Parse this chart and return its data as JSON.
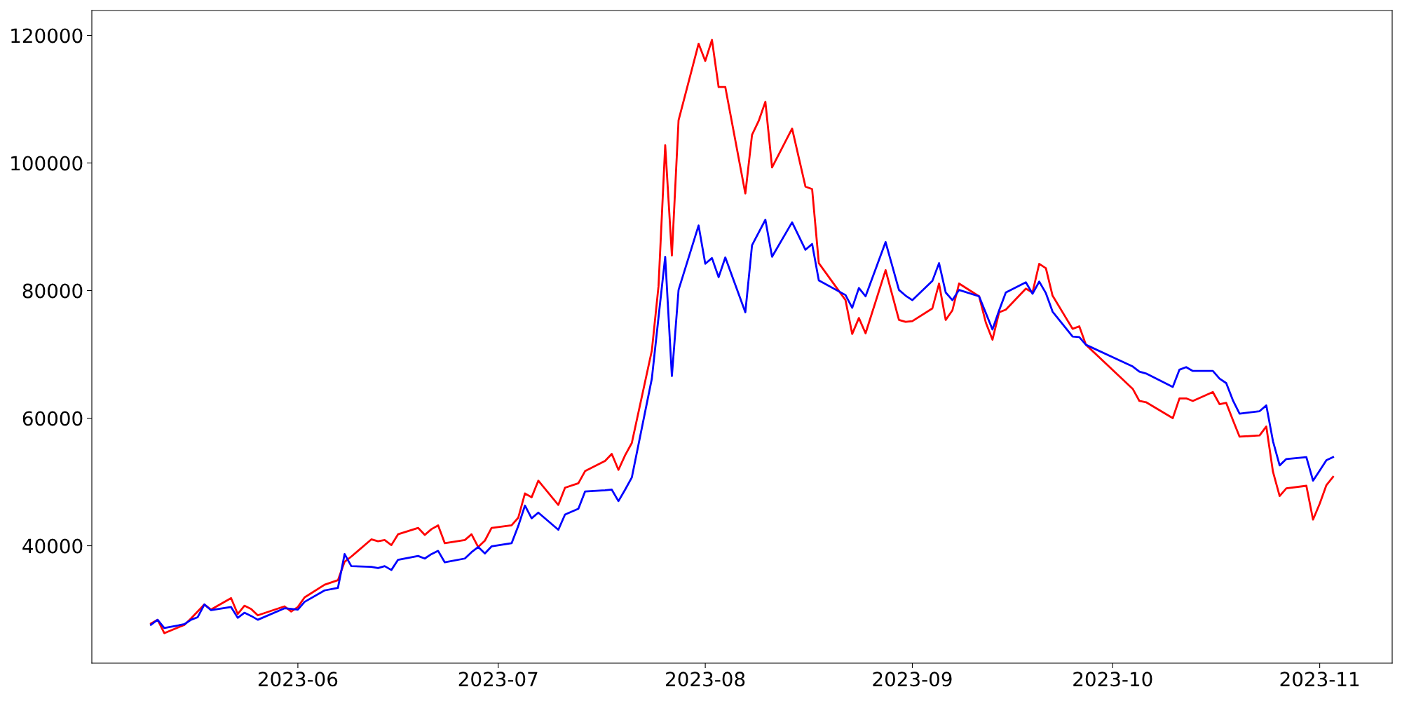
{
  "chart_data": {
    "type": "line",
    "x": [
      "2023-05-10",
      "2023-05-11",
      "2023-05-12",
      "2023-05-15",
      "2023-05-16",
      "2023-05-17",
      "2023-05-18",
      "2023-05-19",
      "2023-05-22",
      "2023-05-23",
      "2023-05-24",
      "2023-05-25",
      "2023-05-26",
      "2023-05-30",
      "2023-05-31",
      "2023-06-01",
      "2023-06-02",
      "2023-06-05",
      "2023-06-07",
      "2023-06-08",
      "2023-06-09",
      "2023-06-12",
      "2023-06-13",
      "2023-06-14",
      "2023-06-15",
      "2023-06-16",
      "2023-06-19",
      "2023-06-20",
      "2023-06-21",
      "2023-06-22",
      "2023-06-23",
      "2023-06-26",
      "2023-06-27",
      "2023-06-28",
      "2023-06-29",
      "2023-06-30",
      "2023-07-03",
      "2023-07-04",
      "2023-07-05",
      "2023-07-06",
      "2023-07-07",
      "2023-07-10",
      "2023-07-11",
      "2023-07-13",
      "2023-07-14",
      "2023-07-17",
      "2023-07-18",
      "2023-07-19",
      "2023-07-20",
      "2023-07-21",
      "2023-07-24",
      "2023-07-25",
      "2023-07-26",
      "2023-07-27",
      "2023-07-28",
      "2023-07-31",
      "2023-08-01",
      "2023-08-02",
      "2023-08-03",
      "2023-08-04",
      "2023-08-07",
      "2023-08-08",
      "2023-08-09",
      "2023-08-10",
      "2023-08-11",
      "2023-08-14",
      "2023-08-16",
      "2023-08-17",
      "2023-08-18",
      "2023-08-22",
      "2023-08-23",
      "2023-08-24",
      "2023-08-25",
      "2023-08-28",
      "2023-08-30",
      "2023-08-31",
      "2023-09-01",
      "2023-09-04",
      "2023-09-05",
      "2023-09-06",
      "2023-09-07",
      "2023-09-08",
      "2023-09-11",
      "2023-09-12",
      "2023-09-13",
      "2023-09-14",
      "2023-09-15",
      "2023-09-18",
      "2023-09-19",
      "2023-09-20",
      "2023-09-21",
      "2023-09-22",
      "2023-09-25",
      "2023-09-26",
      "2023-09-27",
      "2023-10-04",
      "2023-10-05",
      "2023-10-06",
      "2023-10-10",
      "2023-10-11",
      "2023-10-12",
      "2023-10-13",
      "2023-10-16",
      "2023-10-17",
      "2023-10-18",
      "2023-10-19",
      "2023-10-20",
      "2023-10-23",
      "2023-10-24",
      "2023-10-25",
      "2023-10-26",
      "2023-10-27",
      "2023-10-30",
      "2023-10-31",
      "2023-11-01",
      "2023-11-02",
      "2023-11-03"
    ],
    "series": [
      {
        "color": "#ff0000",
        "values": [
          27800,
          28400,
          26300,
          27600,
          28600,
          29700,
          30800,
          30000,
          31800,
          29300,
          30600,
          30100,
          29100,
          30500,
          29700,
          30400,
          31900,
          33900,
          34600,
          37500,
          38300,
          41000,
          40700,
          40900,
          40100,
          41800,
          42800,
          41700,
          42600,
          43200,
          40400,
          40900,
          41800,
          39800,
          40800,
          42800,
          43200,
          44400,
          48200,
          47600,
          50200,
          46400,
          49100,
          49800,
          51700,
          53300,
          54400,
          51900,
          54200,
          56100,
          70600,
          80700,
          102800,
          85500,
          106700,
          118700,
          116000,
          119300,
          111900,
          111900,
          95200,
          104400,
          106600,
          109600,
          99300,
          105400,
          96300,
          95900,
          84300,
          78500,
          73200,
          75700,
          73300,
          83200,
          75400,
          75100,
          75200,
          77200,
          81100,
          75400,
          76900,
          81100,
          79100,
          75000,
          72300,
          76600,
          77000,
          80300,
          79700,
          84200,
          83500,
          79200,
          74000,
          74400,
          71500,
          64600,
          62700,
          62500,
          60000,
          63100,
          63100,
          62700,
          64100,
          62200,
          62400,
          59700,
          57100,
          57300,
          58700,
          51600,
          47800,
          49000,
          49400,
          44100,
          46600,
          49500,
          50800
        ]
      },
      {
        "color": "#0000ff",
        "values": [
          27600,
          28400,
          27100,
          27700,
          28400,
          28800,
          30800,
          29900,
          30400,
          28700,
          29500,
          29000,
          28400,
          30200,
          30100,
          30000,
          31200,
          33000,
          33400,
          38700,
          36800,
          36700,
          36500,
          36800,
          36200,
          37800,
          38400,
          38000,
          38700,
          39200,
          37400,
          38000,
          39000,
          39800,
          38800,
          39900,
          40400,
          43100,
          46300,
          44300,
          45200,
          42500,
          44900,
          45800,
          48500,
          48700,
          48800,
          47000,
          48800,
          50700,
          66200,
          75800,
          85300,
          66600,
          80100,
          90200,
          84200,
          85100,
          82100,
          85200,
          76600,
          87100,
          89100,
          91100,
          85300,
          90700,
          86400,
          87300,
          81600,
          79300,
          77300,
          80400,
          79100,
          87600,
          80100,
          79200,
          78500,
          81500,
          84300,
          79700,
          78500,
          80100,
          79100,
          76500,
          73900,
          76900,
          79700,
          81300,
          79500,
          81400,
          79600,
          76700,
          72800,
          72700,
          71500,
          68100,
          67300,
          67000,
          64900,
          67600,
          68000,
          67400,
          67400,
          66200,
          65500,
          62800,
          60700,
          61100,
          62000,
          56400,
          52600,
          53600,
          53900,
          50200,
          51800,
          53400,
          53900
        ]
      }
    ],
    "xlim": [
      "2023-05-01T03:36",
      "2023-11-11T20:24"
    ],
    "xticks": [
      "2023-06",
      "2023-07",
      "2023-08",
      "2023-09",
      "2023-10",
      "2023-11"
    ],
    "ylim": [
      21600,
      123900
    ],
    "yticks": [
      40000,
      60000,
      80000,
      100000,
      120000
    ],
    "grid": false
  }
}
